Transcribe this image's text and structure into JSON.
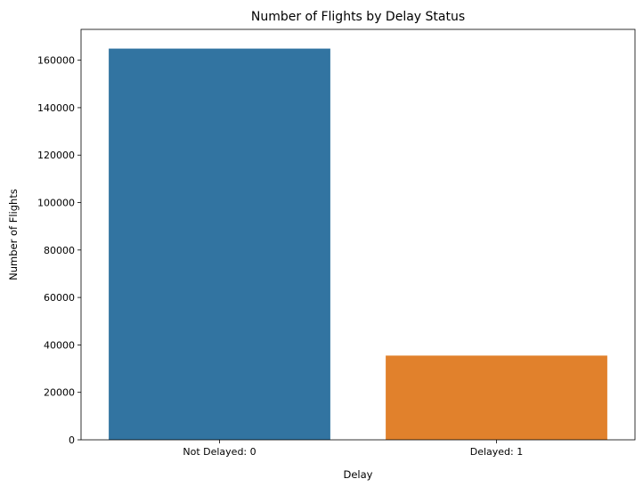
{
  "chart_data": {
    "type": "bar",
    "title": "Number of Flights by Delay Status",
    "xlabel": "Delay",
    "ylabel": "Number of Flights",
    "categories": [
      "Not Delayed: 0",
      "Delayed: 1"
    ],
    "values": [
      164900,
      35500
    ],
    "colors": [
      "#3274a1",
      "#e1812c"
    ],
    "ylim": [
      0,
      173000
    ],
    "yticks": [
      0,
      20000,
      40000,
      60000,
      80000,
      100000,
      120000,
      140000,
      160000
    ],
    "grid": false,
    "legend": "none"
  }
}
